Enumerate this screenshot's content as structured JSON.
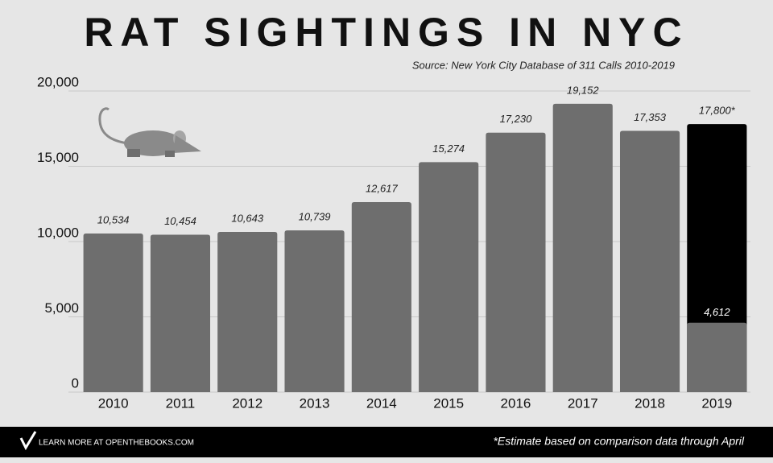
{
  "chart_data": {
    "type": "bar",
    "title": "RAT SIGHTINGS IN NYC",
    "subtitle": "Source: New York City Database of 311 Calls 2010-2019",
    "categories": [
      "2010",
      "2011",
      "2012",
      "2013",
      "2014",
      "2015",
      "2016",
      "2017",
      "2018",
      "2019"
    ],
    "series": [
      {
        "color": "#6e6e6e",
        "values": [
          10534,
          10454,
          10643,
          10739,
          12617,
          15274,
          17230,
          19152,
          17353,
          4612
        ],
        "value_labels": [
          "10,534",
          "10,454",
          "10,643",
          "10,739",
          "12,617",
          "15,274",
          "17,230",
          "19,152",
          "17,353",
          "4,612"
        ]
      },
      {
        "color": "#000000",
        "values": [
          null,
          null,
          null,
          null,
          null,
          null,
          null,
          null,
          null,
          17800
        ],
        "value_labels": [
          null,
          null,
          null,
          null,
          null,
          null,
          null,
          null,
          null,
          "17,800*"
        ]
      }
    ],
    "ylim": [
      0,
      20000
    ],
    "yticks": [
      0,
      {
        "value": 5000,
        "label": "5,000"
      },
      {
        "value": 10000,
        "label": "10,000"
      },
      {
        "value": 15000,
        "label": "15,000"
      },
      {
        "value": 20000,
        "label": "20,000"
      }
    ],
    "grid": true,
    "note": "*Estimate based on comparison data through April"
  },
  "footer": {
    "link_text": "LEARN MORE AT OPENTHEBOOKS.COM"
  }
}
